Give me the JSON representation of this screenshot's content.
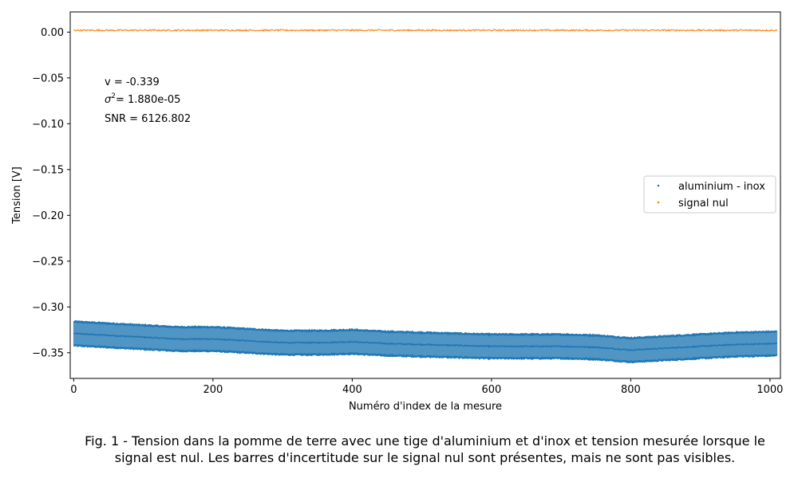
{
  "chart_data": {
    "type": "scatter",
    "xlabel": "Numéro d'index de la mesure",
    "ylabel": "Tension [V]",
    "xlim": [
      -5,
      1015
    ],
    "ylim": [
      -0.378,
      0.022
    ],
    "xticks": [
      0,
      200,
      400,
      600,
      800,
      1000
    ],
    "xtick_labels": [
      "0",
      "200",
      "400",
      "600",
      "800",
      "1000"
    ],
    "yticks": [
      0.0,
      -0.05,
      -0.1,
      -0.15,
      -0.2,
      -0.25,
      -0.3,
      -0.35
    ],
    "ytick_labels": [
      "0.00",
      "−0.05",
      "−0.10",
      "−0.15",
      "−0.20",
      "−0.25",
      "−0.30",
      "−0.35"
    ],
    "grid": false,
    "legend_position": "center-right",
    "series": [
      {
        "name": "aluminium - inox",
        "color": "#1f77b4",
        "marker": "point",
        "n_points": 1010,
        "x": [
          0,
          50,
          100,
          150,
          200,
          250,
          300,
          350,
          400,
          450,
          500,
          550,
          600,
          650,
          700,
          750,
          800,
          850,
          900,
          950,
          1010
        ],
        "y": [
          -0.329,
          -0.331,
          -0.333,
          -0.335,
          -0.335,
          -0.337,
          -0.339,
          -0.339,
          -0.338,
          -0.34,
          -0.341,
          -0.342,
          -0.343,
          -0.343,
          -0.343,
          -0.344,
          -0.347,
          -0.345,
          -0.343,
          -0.341,
          -0.34
        ],
        "error_bar": 0.013
      },
      {
        "name": "signal nul",
        "color": "#ff7f0e",
        "marker": "point",
        "n_points": 1010,
        "x": [
          0,
          1010
        ],
        "y": [
          0.002,
          0.002
        ],
        "noise_amplitude": 0.0008
      }
    ],
    "annotations": [
      {
        "text": "v = -0.339"
      },
      {
        "text_prefix": "σ",
        "superscript": "2",
        "text_suffix": "= 1.880e-05"
      },
      {
        "text": "SNR = 6126.802"
      }
    ]
  },
  "caption": {
    "line1": "Fig. 1 - Tension dans la pomme de terre avec une tige d'aluminium et d'inox et tension mesurée lorsque le",
    "line2": "signal est nul. Les barres d'incertitude sur le signal nul sont présentes, mais ne sont pas visibles."
  }
}
